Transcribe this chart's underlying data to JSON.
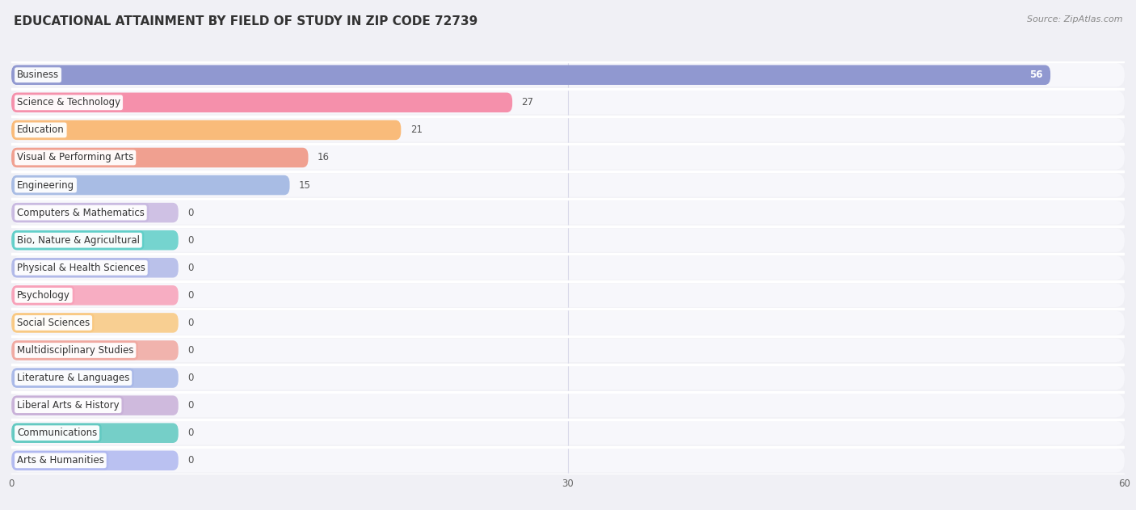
{
  "title": "EDUCATIONAL ATTAINMENT BY FIELD OF STUDY IN ZIP CODE 72739",
  "source": "Source: ZipAtlas.com",
  "categories": [
    "Business",
    "Science & Technology",
    "Education",
    "Visual & Performing Arts",
    "Engineering",
    "Computers & Mathematics",
    "Bio, Nature & Agricultural",
    "Physical & Health Sciences",
    "Psychology",
    "Social Sciences",
    "Multidisciplinary Studies",
    "Literature & Languages",
    "Liberal Arts & History",
    "Communications",
    "Arts & Humanities"
  ],
  "values": [
    56,
    27,
    21,
    16,
    15,
    0,
    0,
    0,
    0,
    0,
    0,
    0,
    0,
    0,
    0
  ],
  "bar_colors": [
    "#9098d0",
    "#f590ab",
    "#f9bb7a",
    "#f0a090",
    "#a8bce4",
    "#c8b8e0",
    "#5ecec8",
    "#b0b8e8",
    "#f8a0b8",
    "#f9c880",
    "#f0a8a0",
    "#a8b8e8",
    "#c8b0d8",
    "#5ec8c0",
    "#b0b8f0"
  ],
  "xlim": [
    0,
    60
  ],
  "xticks": [
    0,
    30,
    60
  ],
  "background_color": "#f0f0f5",
  "row_bg_color": "#f7f7fb",
  "row_separator_color": "#ffffff",
  "title_fontsize": 11,
  "source_fontsize": 8,
  "label_fontsize": 8.5,
  "value_fontsize": 8.5,
  "zero_stub_value": 9
}
